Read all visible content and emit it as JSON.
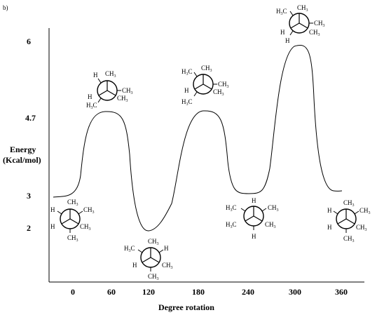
{
  "panel_label": "b)",
  "axes": {
    "ylabel_line1": "Energy",
    "ylabel_line2": "(Kcal/mol)",
    "xlabel": "Degree rotation",
    "y_ticks": [
      "6",
      "4.7",
      "3",
      "2"
    ],
    "x_ticks": [
      "0",
      "60",
      "120",
      "180",
      "240",
      "300",
      "360"
    ]
  },
  "energy_curve": {
    "x": [
      -30,
      0,
      30,
      60,
      90,
      120,
      150,
      180,
      210,
      240,
      270,
      300,
      330,
      360
    ],
    "y": [
      3.0,
      3.2,
      4.6,
      4.7,
      4.5,
      1.95,
      4.6,
      4.7,
      4.5,
      3.0,
      4.0,
      5.9,
      5.8,
      3.0
    ]
  },
  "conformers": [
    {
      "name": "conformer-0",
      "groups": [
        "CH3",
        "CH3",
        "CH3",
        "CH3",
        "H",
        "H"
      ],
      "labels": [
        "H",
        "CH3",
        "CH3",
        "CH3",
        "H",
        "CH3"
      ]
    },
    {
      "name": "conformer-60",
      "labels": [
        "H",
        "CH3",
        "CH3",
        "CH3",
        "H",
        "H3C"
      ]
    },
    {
      "name": "conformer-120",
      "labels": [
        "H3C",
        "CH3",
        "H",
        "CH3",
        "CH3",
        "H"
      ]
    },
    {
      "name": "conformer-180",
      "labels": [
        "H3C",
        "CH3",
        "CH3",
        "CH3",
        "H",
        "H3C"
      ]
    },
    {
      "name": "conformer-240",
      "labels": [
        "H3C",
        "H",
        "CH3",
        "CH3",
        "H",
        "H3C"
      ]
    },
    {
      "name": "conformer-300",
      "labels": [
        "H3C",
        "CH3",
        "CH3",
        "CH3",
        "H",
        "H"
      ]
    },
    {
      "name": "conformer-360",
      "labels": [
        "H",
        "CH3",
        "CH3",
        "CH3",
        "H",
        "H3C"
      ]
    }
  ]
}
